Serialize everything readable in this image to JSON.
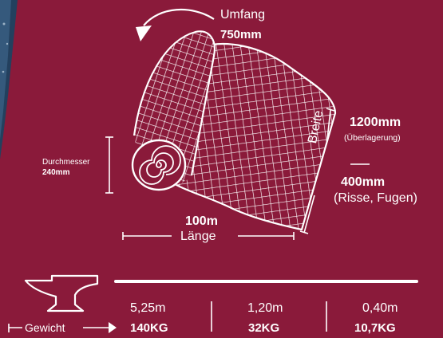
{
  "roll": {
    "circumference_label": "Umfang",
    "circumference_value": "750mm",
    "diameter_label": "Durchmesser",
    "diameter_value": "240mm",
    "length_value": "100m",
    "length_label": "Länge",
    "width_label": "Breite",
    "width_option1_value": "1200mm",
    "width_option1_note": "(Überlagerung)",
    "width_separator": "—",
    "width_option2_value": "400mm",
    "width_option2_note": "(Risse, Fugen)"
  },
  "weights": {
    "label": "Gewicht",
    "items": [
      {
        "length": "5,25m",
        "weight": "140KG"
      },
      {
        "length": "1,20m",
        "weight": "32KG"
      },
      {
        "length": "0,40m",
        "weight": "10,7KG"
      }
    ]
  },
  "colors": {
    "background": "#8a1a3a",
    "foreground": "#ffffff",
    "corner_photo": "#2c4a6a"
  },
  "icons": [
    "rotate-arrow-icon",
    "anvil-icon",
    "roll-grid-icon"
  ]
}
